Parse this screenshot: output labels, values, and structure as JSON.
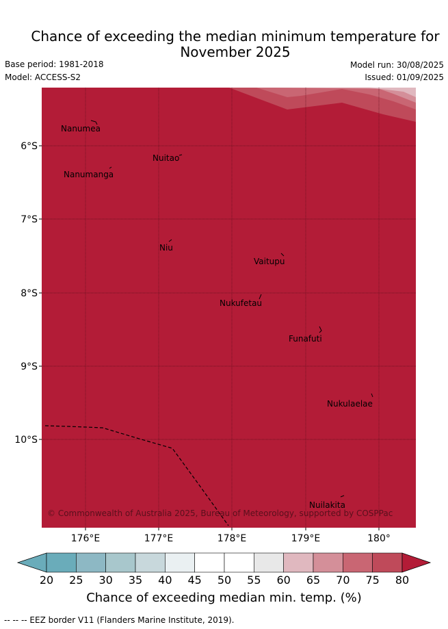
{
  "title": "Chance of exceeding the median minimum temperature for November 2025",
  "title_line1": "Chance of exceeding the median minimum temperature for",
  "title_line2": "November 2025",
  "meta": {
    "base_period": "Base period: 1981-2018",
    "model": "Model: ACCESS-S2",
    "model_run": "Model run: 30/08/2025",
    "issued": "Issued: 01/09/2025"
  },
  "map": {
    "fill_color": "#b31c37",
    "islands": [
      {
        "name": "Nanumea"
      },
      {
        "name": "Nuitao"
      },
      {
        "name": "Nanumanga"
      },
      {
        "name": "Niu"
      },
      {
        "name": "Vaitupu"
      },
      {
        "name": "Nukufetau"
      },
      {
        "name": "Funafuti"
      },
      {
        "name": "Nukulaelae"
      },
      {
        "name": "Nuilakita"
      }
    ],
    "lat_ticks": [
      "6°S",
      "7°S",
      "8°S",
      "9°S",
      "10°S"
    ],
    "lon_ticks": [
      "176°E",
      "177°E",
      "178°E",
      "179°E",
      "180°"
    ],
    "copyright": "© Commonwealth of Australia 2025, Bureau of Meteorology, supported by COSPPac"
  },
  "colorbar": {
    "ticks": [
      "20",
      "25",
      "30",
      "35",
      "40",
      "45",
      "50",
      "55",
      "60",
      "65",
      "70",
      "75",
      "80"
    ],
    "colors": [
      "#6aacba",
      "#8db8c4",
      "#a8c7cc",
      "#c8d8dc",
      "#eaf0f2",
      "#ffffff",
      "#ffffff",
      "#e8e8e8",
      "#e0b8bf",
      "#d48f99",
      "#c96673",
      "#bf4a5a",
      "#b31c37"
    ],
    "title": "Chance of exceeding median min. temp. (%)"
  },
  "footnote": "--  --  -- EEZ border V11 (Flanders Marine Institute, 2019)."
}
